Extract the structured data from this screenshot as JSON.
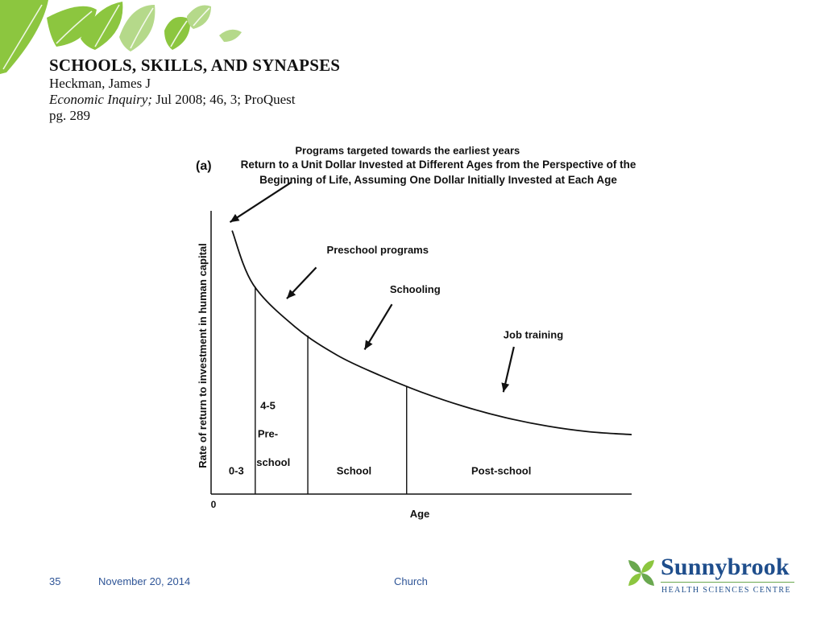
{
  "colors": {
    "leaf_green": "#8cc63f",
    "leaf_light": "#b5d98a",
    "footer_blue": "#2f5597",
    "logo_blue": "#1f4e8c",
    "logo_green": "#6aa84f"
  },
  "citation": {
    "title": "SCHOOLS, SKILLS, AND SYNAPSES",
    "author": "Heckman, James J",
    "journal": "Economic Inquiry;",
    "issue": "Jul 2008; 46, 3; ProQuest",
    "page": "pg. 289"
  },
  "chart_data": {
    "type": "line",
    "panel_label": "(a)",
    "title_line1": "Return to a Unit Dollar Invested at Different Ages from the Perspective of the",
    "title_line2": "Beginning of Life, Assuming One Dollar Initially Invested at Each Age",
    "ylabel": "Rate of return to investment in human capital",
    "xlabel": "Age",
    "origin_label": "0",
    "axes_numeric": false,
    "series": [
      {
        "values": [
          {
            "x": 0.05,
            "y": 0.93
          },
          {
            "x": 0.1,
            "y": 0.74
          },
          {
            "x": 0.2,
            "y": 0.59
          },
          {
            "x": 0.3,
            "y": 0.49
          },
          {
            "x": 0.4,
            "y": 0.42
          },
          {
            "x": 0.5,
            "y": 0.36
          },
          {
            "x": 0.6,
            "y": 0.31
          },
          {
            "x": 0.7,
            "y": 0.27
          },
          {
            "x": 0.8,
            "y": 0.24
          },
          {
            "x": 0.9,
            "y": 0.22
          },
          {
            "x": 1.0,
            "y": 0.21
          }
        ]
      }
    ],
    "stage_boundaries_x": [
      0.105,
      0.23,
      0.465
    ],
    "stages": [
      {
        "label": "0-3",
        "x": 0.06,
        "y": 0.07
      },
      {
        "label": "4-5",
        "x": 0.135,
        "y": 0.3
      },
      {
        "label": "Pre-",
        "x": 0.135,
        "y": 0.2
      },
      {
        "label": "school",
        "x": 0.148,
        "y": 0.1
      },
      {
        "label": "School",
        "x": 0.34,
        "y": 0.07
      },
      {
        "label": "Post-school",
        "x": 0.69,
        "y": 0.07
      }
    ],
    "annotations": [
      {
        "text": "Programs targeted towards the earliest years",
        "label_x": 0.2,
        "label_y": 1.2,
        "arrow_from": [
          0.19,
          1.1
        ],
        "arrow_to": [
          0.045,
          0.96
        ]
      },
      {
        "text": "Preschool programs",
        "label_x": 0.275,
        "label_y": 0.85,
        "arrow_from": [
          0.25,
          0.8
        ],
        "arrow_to": [
          0.18,
          0.69
        ]
      },
      {
        "text": "Schooling",
        "label_x": 0.425,
        "label_y": 0.71,
        "arrow_from": [
          0.43,
          0.67
        ],
        "arrow_to": [
          0.365,
          0.51
        ]
      },
      {
        "text": "Job training",
        "label_x": 0.695,
        "label_y": 0.55,
        "arrow_from": [
          0.72,
          0.52
        ],
        "arrow_to": [
          0.695,
          0.36
        ]
      }
    ]
  },
  "footer": {
    "slide_number": "35",
    "date": "November 20, 2014",
    "center": "Church"
  },
  "logo": {
    "name": "Sunnybrook",
    "subtitle": "HEALTH SCIENCES CENTRE"
  }
}
